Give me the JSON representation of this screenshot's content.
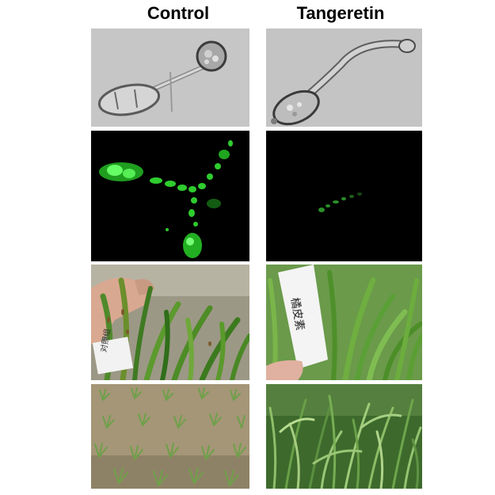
{
  "figure": {
    "columns": [
      {
        "title": "Control"
      },
      {
        "title": "Tangeretin"
      }
    ],
    "rows": [
      {
        "name": "bright-field-spore-germination"
      },
      {
        "name": "gfp-fluorescence"
      },
      {
        "name": "rice-leaves-close-up"
      },
      {
        "name": "rice-field-plot"
      }
    ],
    "labels": {
      "control_tag": "对照组",
      "tangeretin_tag": "橘皮素"
    }
  }
}
